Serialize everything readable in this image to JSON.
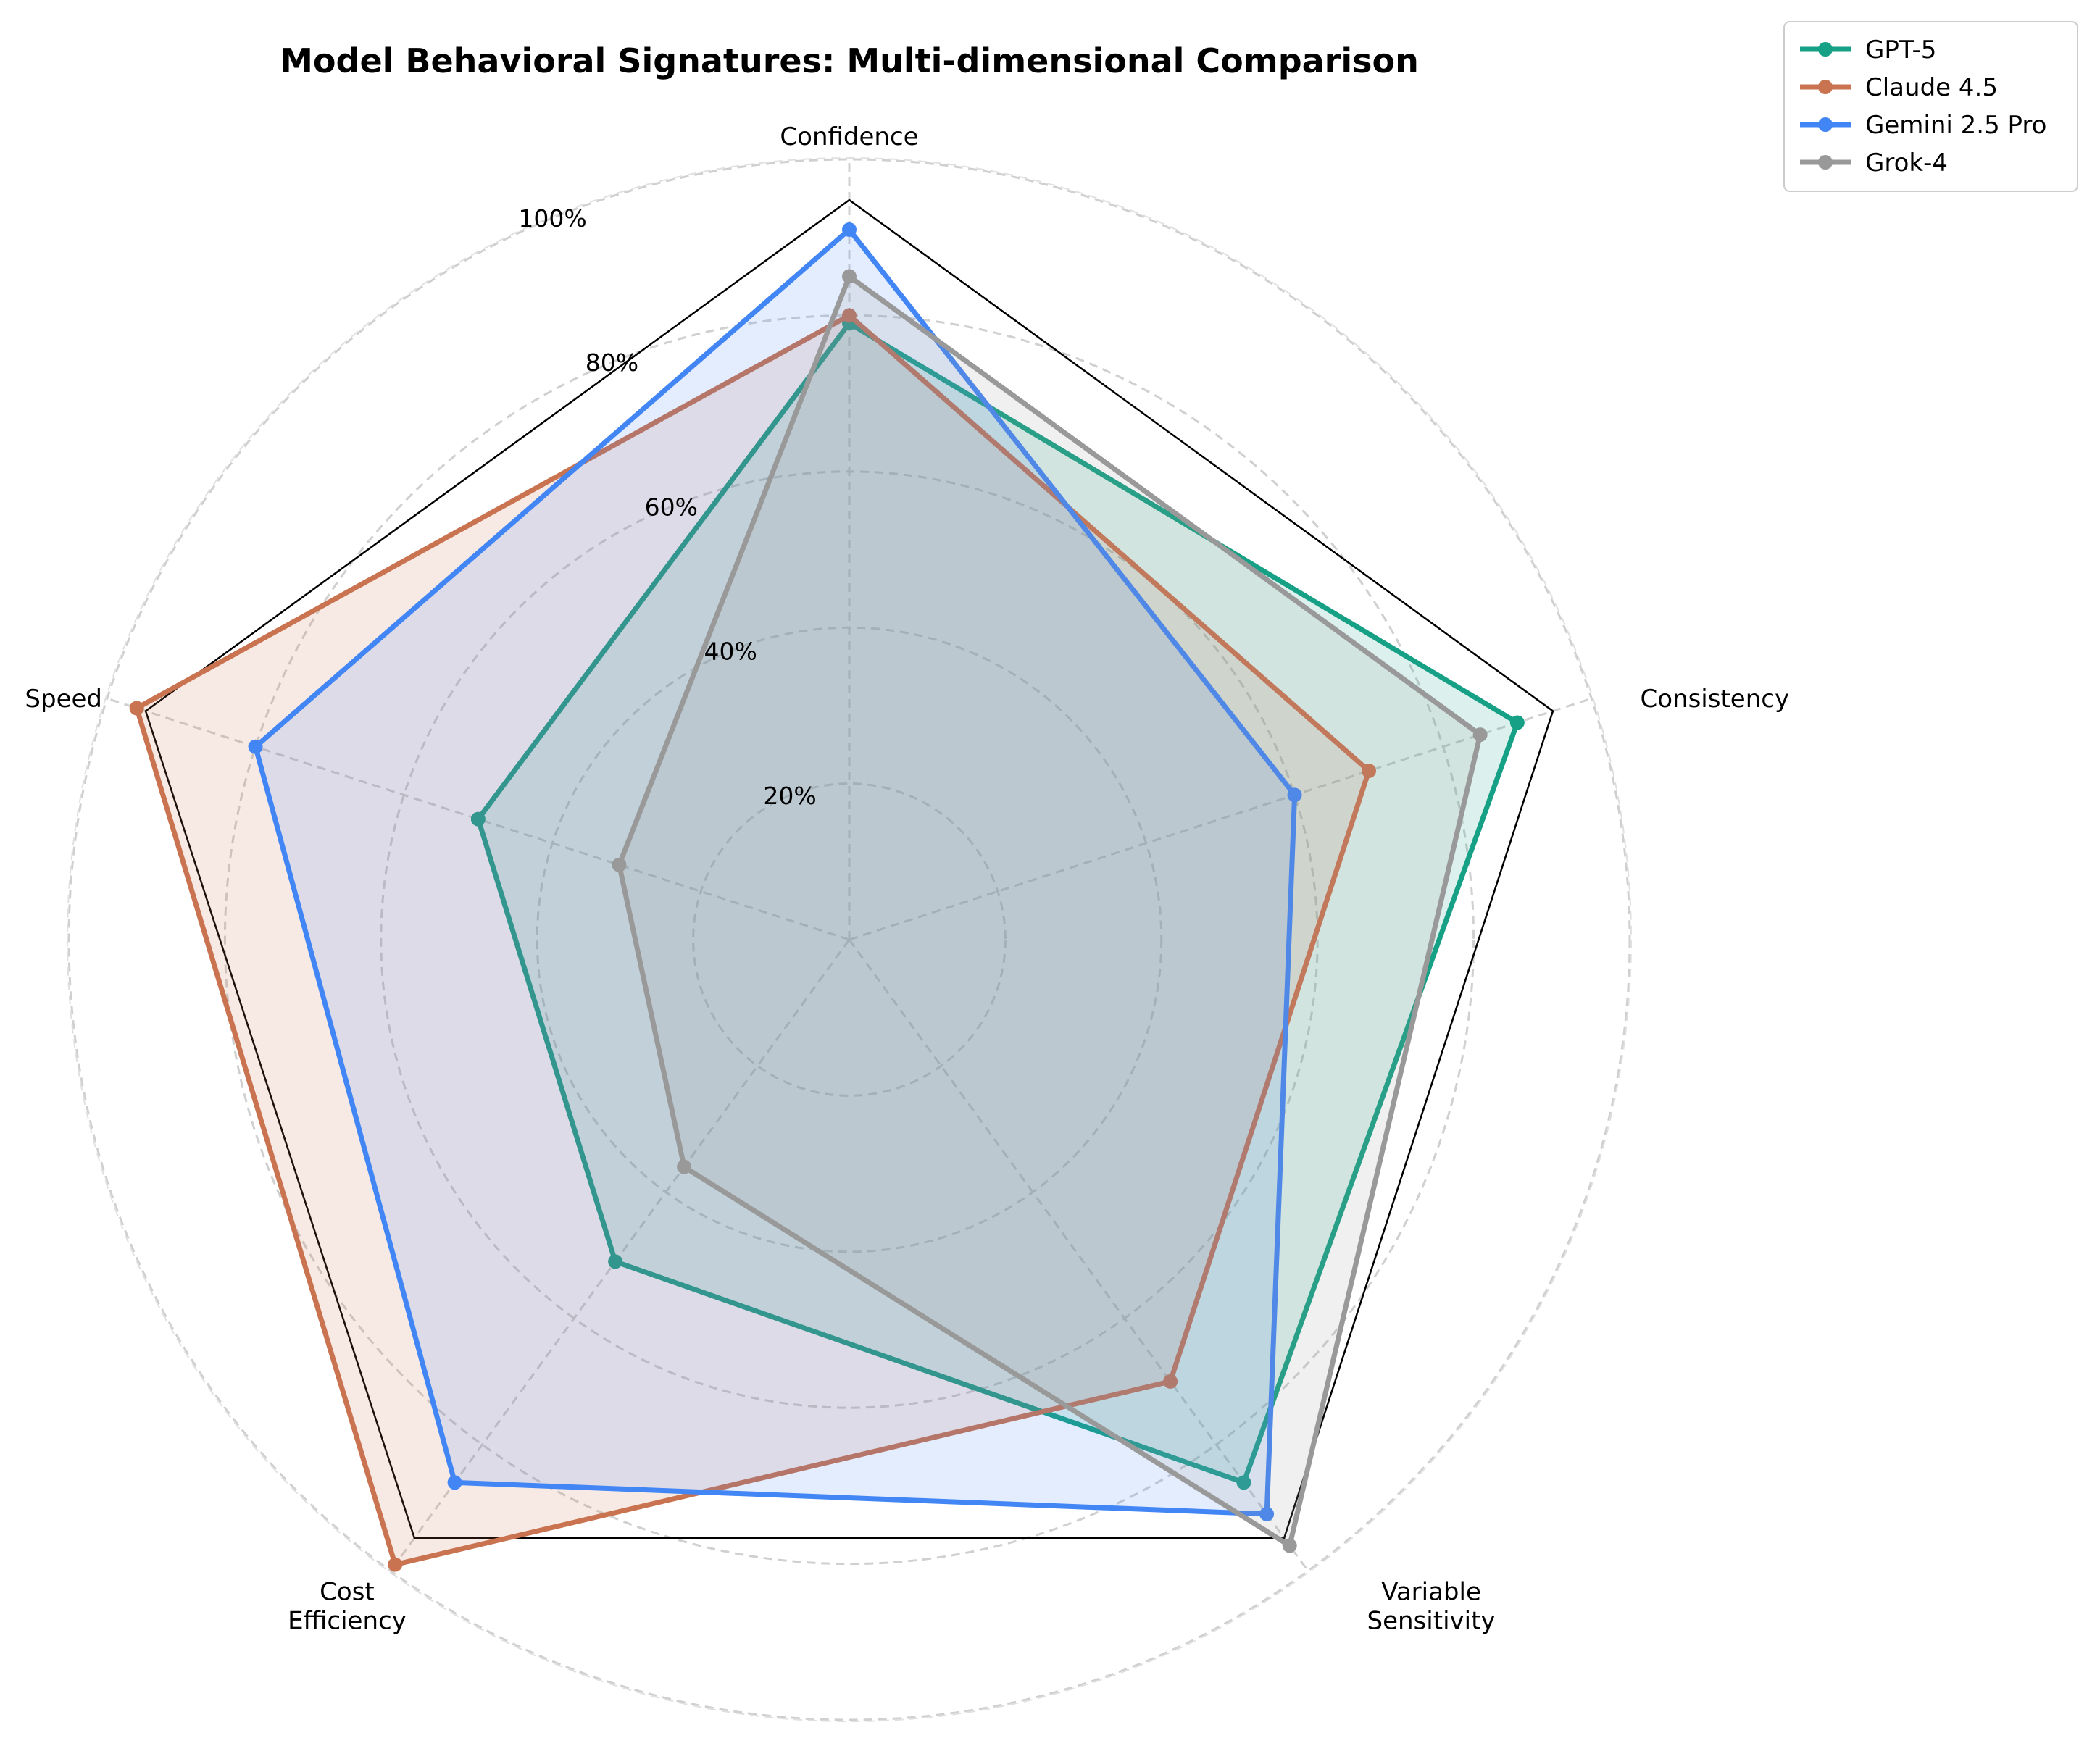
{
  "chart_data": {
    "type": "radar",
    "title": "Model Behavioral Signatures: Multi-dimensional Comparison",
    "axes": [
      {
        "lines": [
          "Confidence"
        ]
      },
      {
        "lines": [
          "Consistency"
        ]
      },
      {
        "lines": [
          "Variable",
          "Sensitivity"
        ]
      },
      {
        "lines": [
          "Cost",
          "Efficiency"
        ]
      },
      {
        "lines": [
          "Speed"
        ]
      }
    ],
    "rlim": [
      0,
      100
    ],
    "grid": true,
    "r_ticks": [
      {
        "value": 20,
        "label": "20%"
      },
      {
        "value": 40,
        "label": "40%"
      },
      {
        "value": 60,
        "label": "60%"
      },
      {
        "value": 80,
        "label": "80%"
      },
      {
        "value": 100,
        "label": "100%"
      }
    ],
    "legend_position": "top-right",
    "series": [
      {
        "name": "GPT-5",
        "color": "#16a085",
        "values": [
          79,
          90,
          86,
          51,
          50
        ]
      },
      {
        "name": "Claude 4.5",
        "color": "#c97350",
        "values": [
          80,
          70,
          70,
          99,
          96
        ]
      },
      {
        "name": "Gemini 2.5 Pro",
        "color": "#4285f4",
        "values": [
          91,
          60,
          91,
          86,
          80
        ]
      },
      {
        "name": "Grok-4",
        "color": "#999999",
        "values": [
          85,
          85,
          96,
          36,
          31
        ]
      }
    ]
  }
}
